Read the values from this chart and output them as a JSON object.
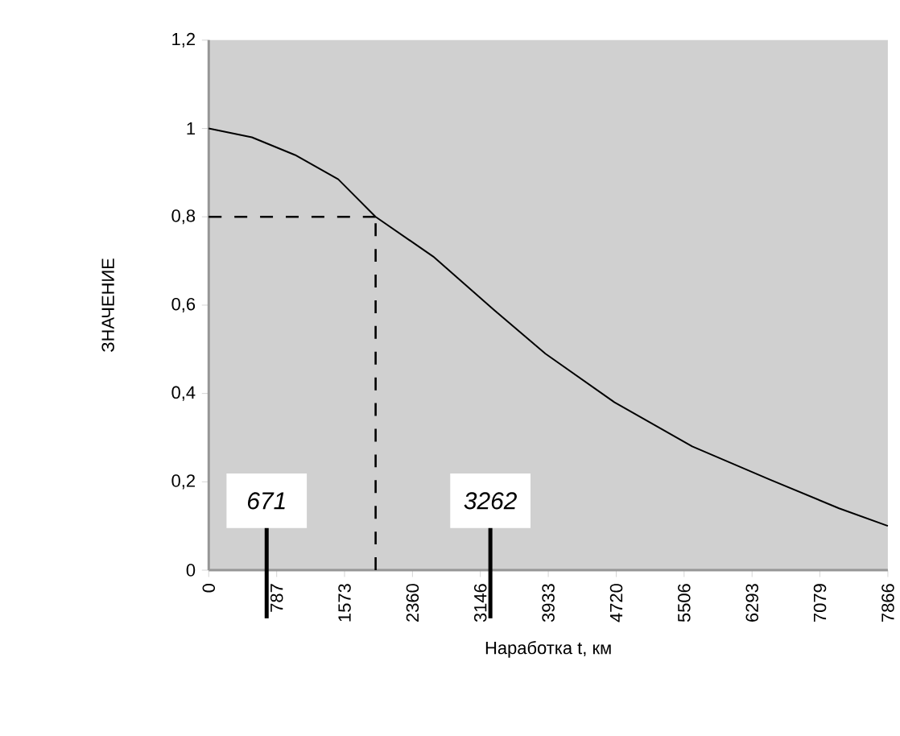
{
  "chart_data": {
    "type": "line",
    "xlabel": "Наработка  t, км",
    "ylabel": "ЗНАЧЕНИЕ",
    "x": [
      0,
      500,
      1000,
      1500,
      1933,
      2600,
      3300,
      3900,
      4700,
      5600,
      6500,
      7300,
      7866
    ],
    "series": [
      {
        "color": "#000000",
        "values": [
          1.0,
          0.98,
          0.94,
          0.885,
          0.8,
          0.71,
          0.59,
          0.49,
          0.38,
          0.28,
          0.205,
          0.14,
          0.1
        ]
      }
    ],
    "xlim": [
      0,
      7866
    ],
    "xticks": [
      0,
      787,
      1573,
      2360,
      3146,
      3933,
      4720,
      5506,
      6293,
      7079,
      7866
    ],
    "ylim": [
      0,
      1.2
    ],
    "yticks": [
      0,
      {
        "value": 0.2,
        "label": "0,2"
      },
      {
        "value": 0.4,
        "label": "0,4"
      },
      {
        "value": 0.6,
        "label": "0,6"
      },
      {
        "value": 0.8,
        "label": "0,8"
      },
      1,
      {
        "value": 1.2,
        "label": "1,2"
      }
    ],
    "ref_lines": [
      {
        "axis": "y",
        "value": 0.8,
        "color": "#000000",
        "line_style": "dashed"
      },
      {
        "axis": "x",
        "value": 1933,
        "color": "#000000",
        "line_style": "dashed"
      },
      {
        "axis": "x",
        "value": 671,
        "label": "671",
        "color": "#000000",
        "line_style": "solid"
      },
      {
        "axis": "x",
        "value": 3262,
        "label": "3262",
        "color": "#000000",
        "line_style": "solid"
      }
    ],
    "grid": false,
    "marker": "none",
    "line_style": "solid"
  }
}
